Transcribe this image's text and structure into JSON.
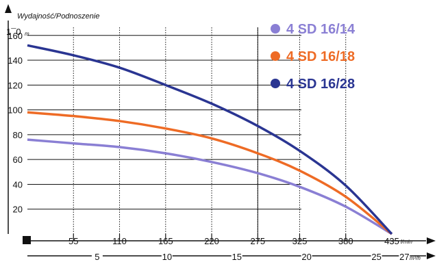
{
  "chart_data": {
    "type": "line",
    "title": "",
    "ylabel": "Wydajność/Podnoszenie",
    "y_unit": "m",
    "x_unit": "l/min",
    "x2_unit": "m³/h",
    "y_axis_top_label": "1¯0",
    "ylim": [
      0,
      172
    ],
    "xlim": [
      0,
      435
    ],
    "grid": true,
    "legend_position": "top-right",
    "y_ticks": [
      "20",
      "40",
      "60",
      "80",
      "100",
      "120",
      "140",
      "160"
    ],
    "x_ticks": [
      "55",
      "110",
      "165",
      "220",
      "275",
      "325",
      "380",
      "435"
    ],
    "x2_ticks": [
      "5",
      "10",
      "15",
      "20",
      "25",
      "27"
    ],
    "series": [
      {
        "name": "4 SD 16/14",
        "color": "#8a7fd4",
        "x": [
          0,
          55,
          110,
          165,
          220,
          275,
          325,
          380,
          435
        ],
        "y": [
          76,
          73,
          70,
          65,
          58,
          49,
          38,
          22,
          0
        ]
      },
      {
        "name": "4 SD 16/18",
        "color": "#ee6b25",
        "x": [
          0,
          55,
          110,
          165,
          220,
          275,
          325,
          380,
          435
        ],
        "y": [
          98,
          95,
          91,
          85,
          77,
          65,
          51,
          30,
          0
        ]
      },
      {
        "name": "4 SD 16/28",
        "color": "#2a3592",
        "x": [
          0,
          55,
          110,
          165,
          220,
          275,
          325,
          380,
          435
        ],
        "y": [
          152,
          144,
          134,
          120,
          105,
          87,
          67,
          39,
          0
        ]
      }
    ]
  }
}
